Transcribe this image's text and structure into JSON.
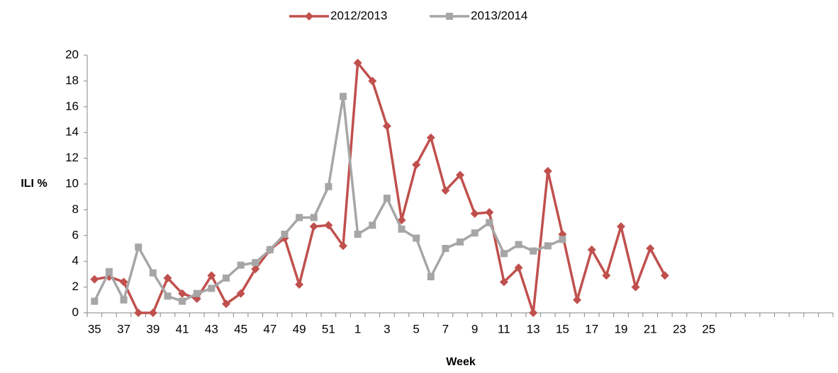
{
  "chart_data": {
    "type": "line",
    "x_label": "Week",
    "y_label": "ILI %",
    "categories": [
      "35",
      null,
      "37",
      null,
      "39",
      null,
      "41",
      null,
      "43",
      null,
      "45",
      null,
      "47",
      null,
      "49",
      null,
      "51",
      null,
      "1",
      null,
      "3",
      null,
      "5",
      null,
      "7",
      null,
      "9",
      null,
      "11",
      null,
      "13",
      null,
      "15",
      null,
      "17",
      null,
      "19",
      null,
      "21",
      null,
      "23",
      null,
      "25",
      null,
      null,
      null,
      null,
      null,
      null,
      null,
      null
    ],
    "series": [
      {
        "name": "2012/2013",
        "color": "#c0504d",
        "marker": "diamond",
        "values": [
          2.6,
          2.8,
          2.4,
          0,
          0,
          2.7,
          1.5,
          1.1,
          2.9,
          0.7,
          1.5,
          3.4,
          4.9,
          5.8,
          2.2,
          6.7,
          6.8,
          5.2,
          19.4,
          18,
          14.5,
          7.2,
          11.5,
          13.6,
          9.5,
          10.7,
          7.7,
          7.8,
          2.4,
          3.5,
          0,
          11,
          6.1,
          1,
          4.9,
          2.9,
          6.7,
          2.0,
          5.0,
          2.9,
          null,
          null,
          null,
          null,
          null,
          null,
          null,
          null,
          null,
          null,
          null
        ]
      },
      {
        "name": "2013/2014",
        "color": "#a6a6a6",
        "marker": "square",
        "values": [
          0.9,
          3.2,
          1.0,
          5.1,
          3.1,
          1.3,
          0.9,
          1.5,
          1.9,
          2.7,
          3.7,
          3.9,
          4.9,
          6.1,
          7.4,
          7.4,
          9.8,
          16.8,
          6.1,
          6.8,
          8.9,
          6.5,
          5.8,
          2.8,
          5.0,
          5.5,
          6.2,
          7.0,
          4.6,
          5.3,
          4.8,
          5.2,
          5.7,
          null,
          null,
          null,
          null,
          null,
          null,
          null,
          null,
          null,
          null,
          null,
          null,
          null,
          null,
          null,
          null,
          null,
          null
        ]
      }
    ],
    "ylim": [
      0,
      20
    ],
    "yticks": [
      0,
      2,
      4,
      6,
      8,
      10,
      12,
      14,
      16,
      18,
      20
    ],
    "grid": false,
    "legend": "top"
  }
}
